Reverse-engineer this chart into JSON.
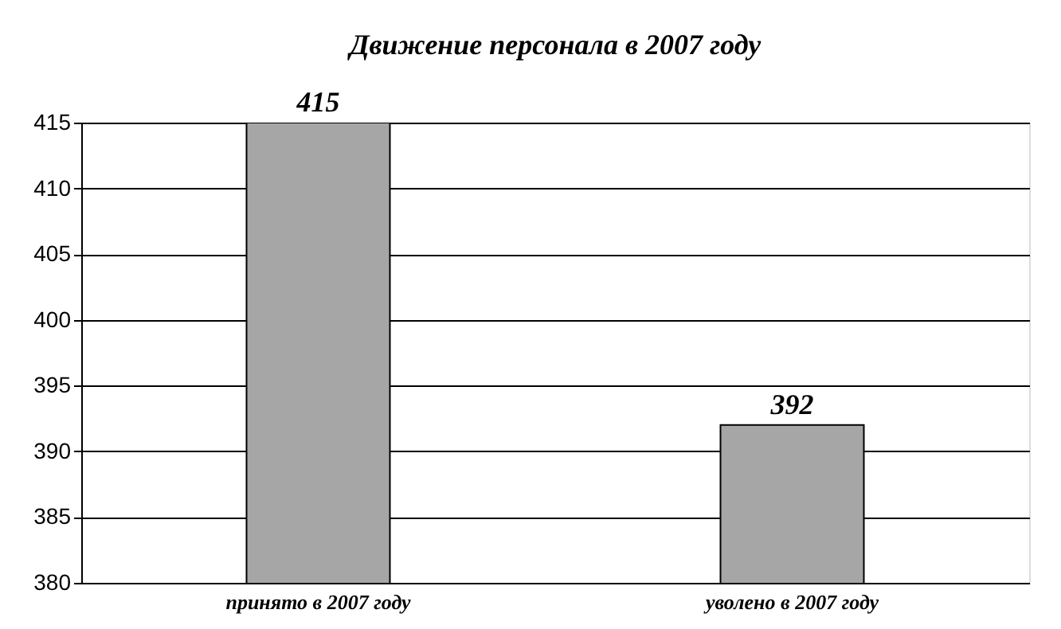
{
  "chart_data": {
    "type": "bar",
    "title": "Движение персонала в 2007 году",
    "categories": [
      "принято в 2007 году",
      "уволено в 2007 году"
    ],
    "values": [
      415,
      392
    ],
    "color": "#a6a6a6",
    "ylim": [
      380,
      415
    ],
    "yticks": [
      380,
      385,
      390,
      395,
      400,
      405,
      410,
      415
    ],
    "grid": "y",
    "data_labels": true
  }
}
